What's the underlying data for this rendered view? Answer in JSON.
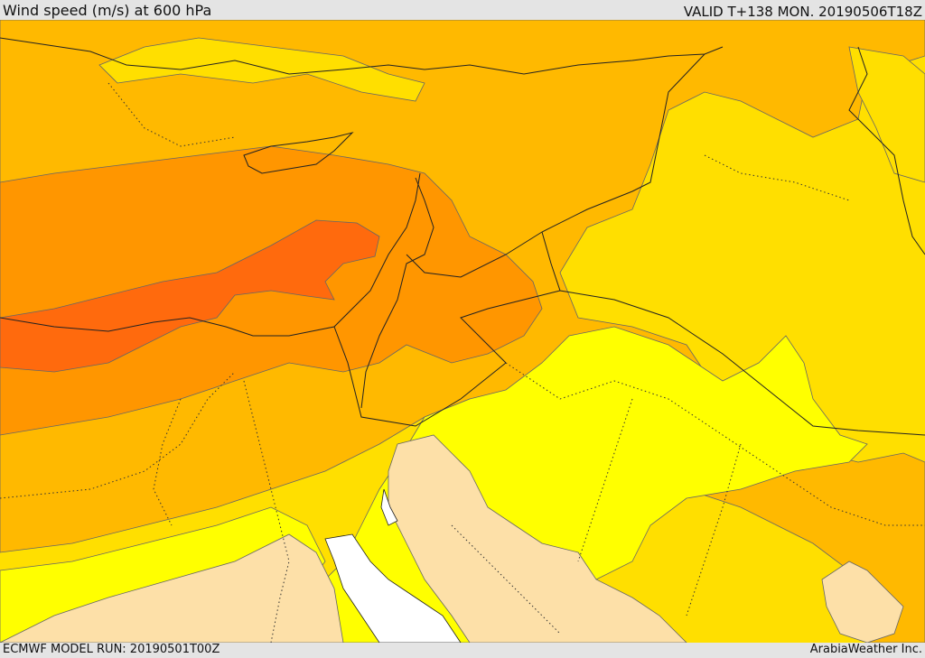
{
  "header": {
    "title": "Wind speed (m/s) at 600 hPa",
    "valid": "VALID T+138 MON. 20190506T18Z"
  },
  "footer": {
    "model_run": "ECMWF MODEL RUN: 20190501T00Z",
    "credit": "ArabiaWeather Inc."
  },
  "map": {
    "field": "wind-speed",
    "colors": {
      "calm": "#fde0a8",
      "light": "#ffff00",
      "moderate": "#ffdf00",
      "fresh": "#ffb900",
      "strong": "#ff9600",
      "very_strong": "#ff6a0d",
      "sea": "#ffffff",
      "contour": "#666666",
      "border": "#222222"
    }
  }
}
